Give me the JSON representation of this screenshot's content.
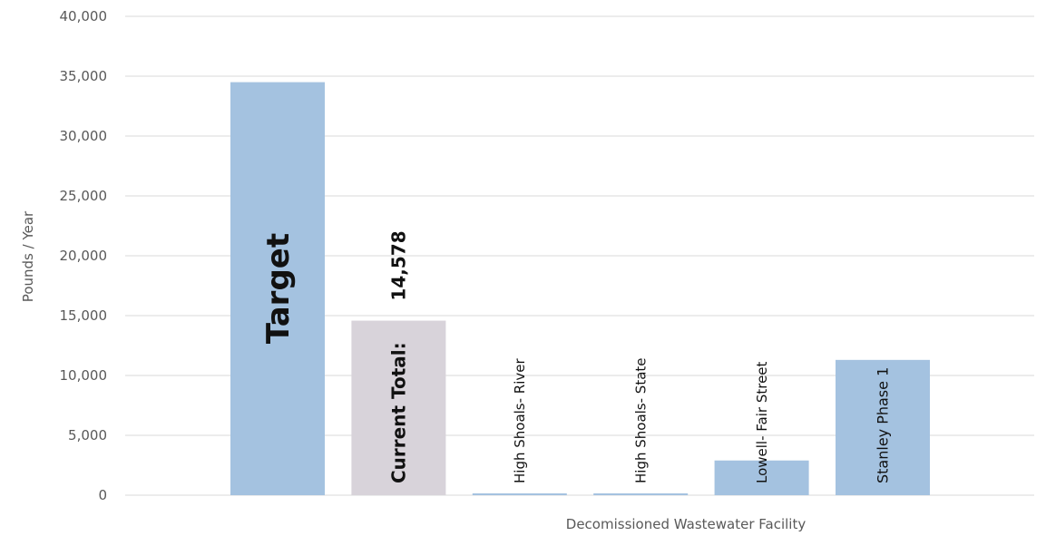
{
  "chart_data": {
    "type": "bar",
    "title": "",
    "xlabel": "Decomissioned Wastewater Facility",
    "ylabel": "Pounds / Year",
    "ylim": [
      0,
      40000
    ],
    "yticks": [
      "0",
      "5,000",
      "10,000",
      "15,000",
      "20,000",
      "25,000",
      "30,000",
      "35,000",
      "40,000"
    ],
    "grid": true,
    "legend": "none",
    "categories": [
      "Target",
      "Current Total:",
      "High Shoals- River",
      "High Shoals- State",
      "Lowell- Fair Street",
      "Stanley Phase 1"
    ],
    "values": [
      34500,
      14578,
      150,
      150,
      2900,
      11300
    ],
    "data_labels": {
      "Current Total:": "14,578"
    },
    "colors": {
      "bar": "#a4c2e0",
      "highlight": "#d8d3da",
      "gridline": "#d9d9d9",
      "axis_text": "#595959"
    }
  }
}
